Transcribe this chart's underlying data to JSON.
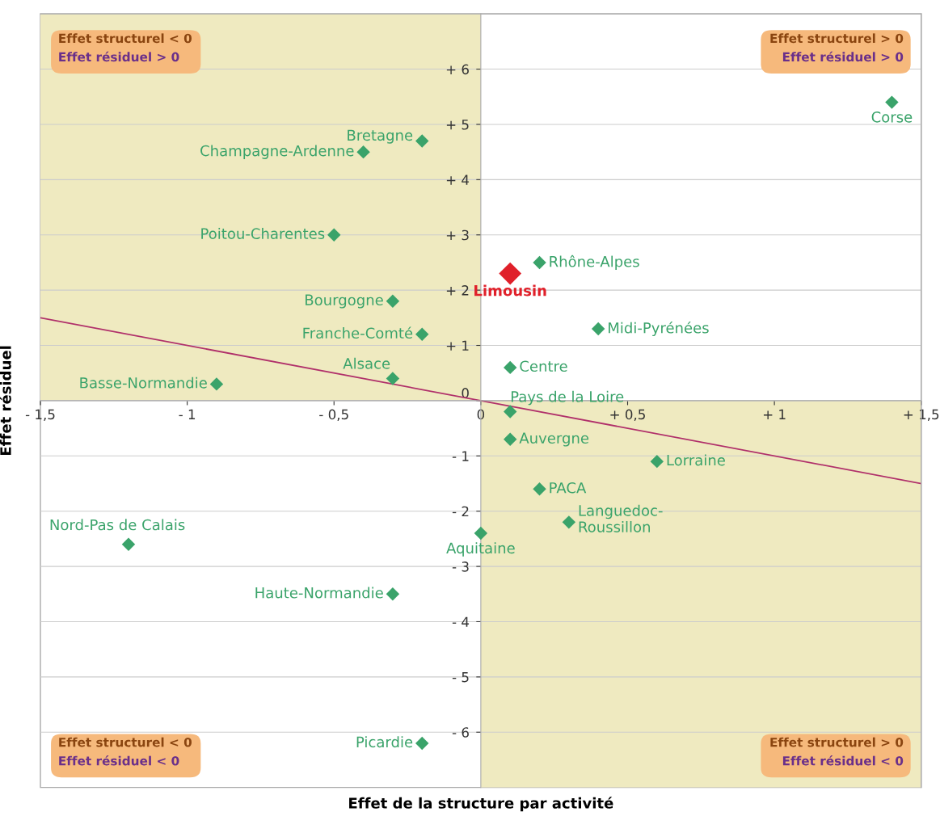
{
  "chart_data": {
    "type": "scatter",
    "xlabel": "Effet de la structure par activité",
    "ylabel": "Effet résiduel",
    "xlim": [
      -1.5,
      1.5
    ],
    "ylim": [
      -7,
      7
    ],
    "xticks": [
      {
        "value": -1.5,
        "label": "- 1,5"
      },
      {
        "value": -1,
        "label": "- 1"
      },
      {
        "value": -0.5,
        "label": "- 0,5"
      },
      0,
      {
        "value": 0.5,
        "label": "+ 0,5"
      },
      {
        "value": 1,
        "label": "+ 1"
      },
      {
        "value": 1.5,
        "label": "+ 1,5"
      }
    ],
    "yticks": [
      {
        "value": -6,
        "label": "- 6"
      },
      {
        "value": -5,
        "label": "- 5"
      },
      {
        "value": -4,
        "label": "- 4"
      },
      {
        "value": -3,
        "label": "- 3"
      },
      {
        "value": -2,
        "label": "- 2"
      },
      {
        "value": -1,
        "label": "- 1"
      },
      0,
      {
        "value": 1,
        "label": "+ 1"
      },
      {
        "value": 2,
        "label": "+ 2"
      },
      {
        "value": 3,
        "label": "+ 3"
      },
      {
        "value": 4,
        "label": "+ 4"
      },
      {
        "value": 5,
        "label": "+ 5"
      },
      {
        "value": 6,
        "label": "+ 6"
      }
    ],
    "grid": "y",
    "marker": "diamond",
    "legend": false,
    "series": [
      {
        "name": "Corse",
        "color": "#3aa36a",
        "x": [
          1.4
        ],
        "values": [
          5.4
        ]
      },
      {
        "name": "Bretagne",
        "color": "#3aa36a",
        "x": [
          -0.2
        ],
        "values": [
          4.7
        ]
      },
      {
        "name": "Champagne-Ardenne",
        "color": "#3aa36a",
        "x": [
          -0.4
        ],
        "values": [
          4.5
        ]
      },
      {
        "name": "Poitou-Charentes",
        "color": "#3aa36a",
        "x": [
          -0.5
        ],
        "values": [
          3.0
        ]
      },
      {
        "name": "Bourgogne",
        "color": "#3aa36a",
        "x": [
          -0.3
        ],
        "values": [
          1.8
        ]
      },
      {
        "name": "Franche-Comté",
        "color": "#3aa36a",
        "x": [
          -0.2
        ],
        "values": [
          1.2
        ]
      },
      {
        "name": "Alsace",
        "color": "#3aa36a",
        "x": [
          -0.3
        ],
        "values": [
          0.4
        ]
      },
      {
        "name": "Basse-Normandie",
        "color": "#3aa36a",
        "x": [
          -0.9
        ],
        "values": [
          0.3
        ]
      },
      {
        "name": "Limousin",
        "color": "#e0202a",
        "x": [
          0.1
        ],
        "values": [
          2.3
        ]
      },
      {
        "name": "Rhône-Alpes",
        "color": "#3aa36a",
        "x": [
          0.2
        ],
        "values": [
          2.5
        ]
      },
      {
        "name": "Midi-Pyrénées",
        "color": "#3aa36a",
        "x": [
          0.4
        ],
        "values": [
          1.3
        ]
      },
      {
        "name": "Centre",
        "color": "#3aa36a",
        "x": [
          0.1
        ],
        "values": [
          0.6
        ]
      },
      {
        "name": "Pays de la Loire",
        "color": "#3aa36a",
        "x": [
          0.1
        ],
        "values": [
          -0.2
        ]
      },
      {
        "name": "Auvergne",
        "color": "#3aa36a",
        "x": [
          0.1
        ],
        "values": [
          -0.7
        ]
      },
      {
        "name": "Lorraine",
        "color": "#3aa36a",
        "x": [
          0.6
        ],
        "values": [
          -1.1
        ]
      },
      {
        "name": "PACA",
        "color": "#3aa36a",
        "x": [
          0.2
        ],
        "values": [
          -1.6
        ]
      },
      {
        "name": "Languedoc-\nRoussillon",
        "color": "#3aa36a",
        "x": [
          0.3
        ],
        "values": [
          -2.2
        ]
      },
      {
        "name": "Aquitaine",
        "color": "#3aa36a",
        "x": [
          0.0
        ],
        "values": [
          -2.4
        ]
      },
      {
        "name": "Nord-Pas de Calais",
        "color": "#3aa36a",
        "x": [
          -1.2
        ],
        "values": [
          -2.6
        ]
      },
      {
        "name": "Haute-Normandie",
        "color": "#3aa36a",
        "x": [
          -0.3
        ],
        "values": [
          -3.5
        ]
      },
      {
        "name": "Picardie",
        "color": "#3aa36a",
        "x": [
          -0.2
        ],
        "values": [
          -6.2
        ]
      },
      {
        "type": "line",
        "marker": "none",
        "color": "#b0306a",
        "x": [
          -1.5,
          1.5
        ],
        "values": [
          1.5,
          -1.5
        ]
      }
    ],
    "annotations": [
      "Effet structurel < 0",
      "Effet résiduel > 0",
      "Effet structurel > 0",
      "Effet résiduel > 0",
      "Effet structurel < 0",
      "Effet résiduel < 0",
      "Effet structurel > 0",
      "Effet résiduel < 0"
    ]
  }
}
